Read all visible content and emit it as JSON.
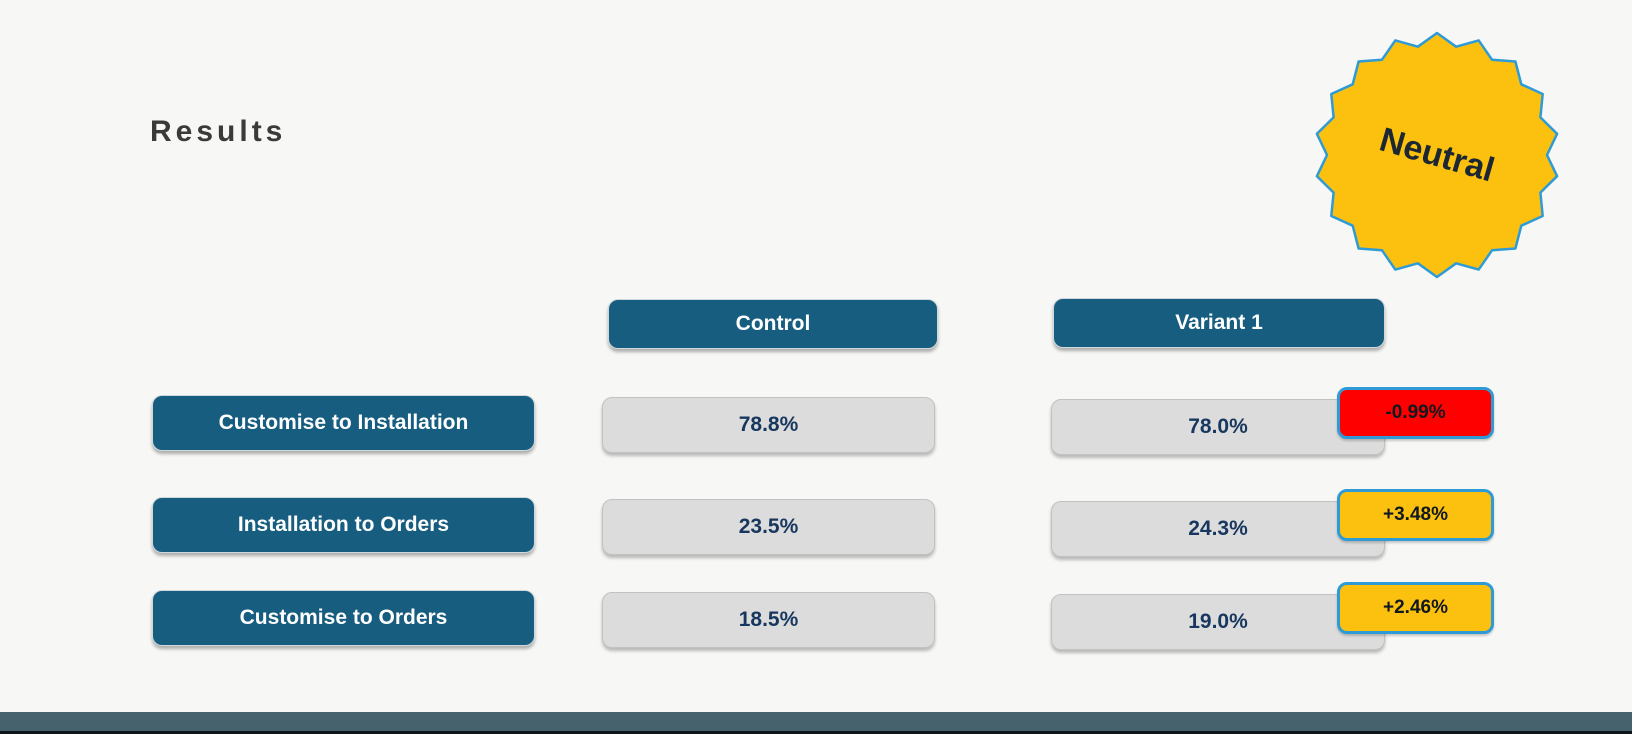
{
  "header": {
    "title": "Results"
  },
  "badge": {
    "label": "Neutral",
    "shape": "starburst-seal",
    "fill": "#fcc10f",
    "outline": "#2e9bd6"
  },
  "table": {
    "columns": [
      {
        "label": "Control"
      },
      {
        "label": "Variant 1"
      }
    ],
    "rows": [
      {
        "label": "Customise to Installation",
        "control": "78.8%",
        "variant": "78.0%",
        "delta": "-0.99%",
        "delta_type": "negative"
      },
      {
        "label": "Installation to Orders",
        "control": "23.5%",
        "variant": "24.3%",
        "delta": "+3.48%",
        "delta_type": "positive"
      },
      {
        "label": "Customise to Orders",
        "control": "18.5%",
        "variant": "19.0%",
        "delta": "+2.46%",
        "delta_type": "positive"
      }
    ]
  },
  "colors": {
    "teal_pill": "#175d80",
    "gray_pill": "#dcdcdc",
    "value_text": "#17375e",
    "delta_negative": "#ff0000",
    "delta_positive": "#fcc10f",
    "badge_border": "#2e9bd6",
    "footer_bar": "#46626d",
    "background": "#f7f7f5"
  },
  "chart_data": {
    "type": "table",
    "title": "Results",
    "columns": [
      "Control",
      "Variant 1"
    ],
    "row_labels": [
      "Customise to Installation",
      "Installation to Orders",
      "Customise to Orders"
    ],
    "series": [
      {
        "name": "Control",
        "values": [
          78.8,
          23.5,
          18.5
        ]
      },
      {
        "name": "Variant 1",
        "values": [
          78.0,
          24.3,
          19.0
        ]
      }
    ],
    "delta_percent": [
      -0.99,
      3.48,
      2.46
    ],
    "verdict": "Neutral"
  }
}
